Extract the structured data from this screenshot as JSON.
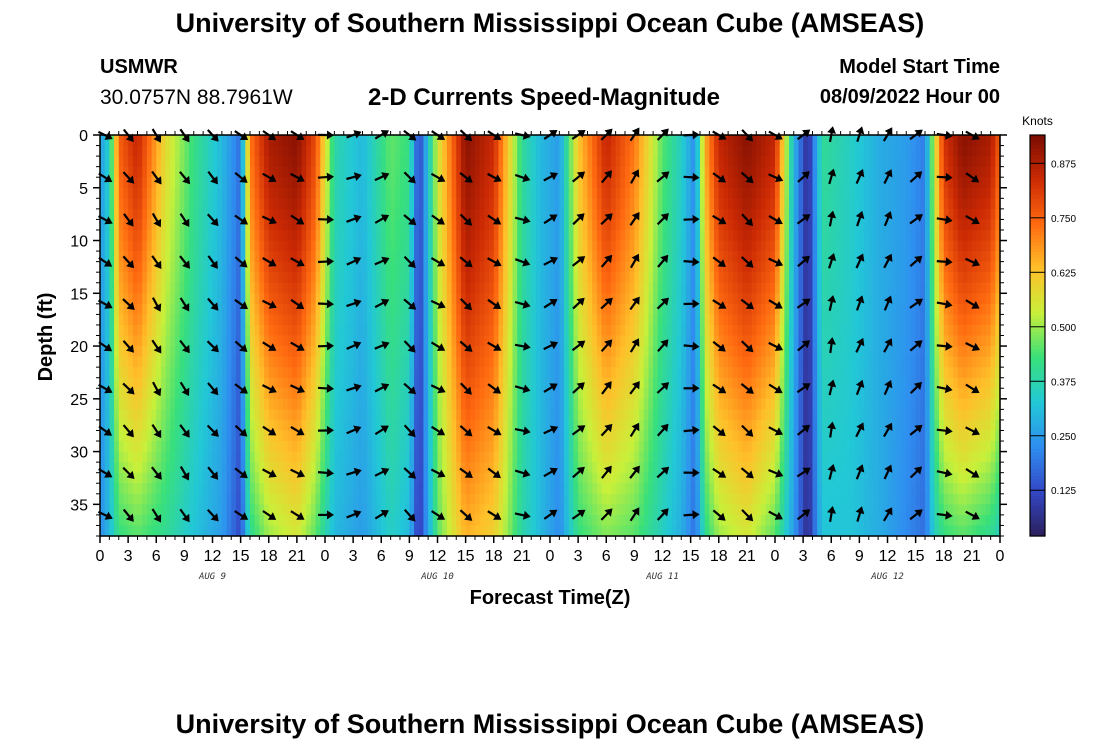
{
  "header": {
    "title": "University of Southern Mississippi Ocean Cube (AMSEAS)",
    "station": "USMWR",
    "coords": "30.0757N  88.7961W",
    "model_start_label": "Model Start Time",
    "model_start_value": "08/09/2022 Hour 00"
  },
  "footer": {
    "title": "University of Southern Mississippi Ocean Cube (AMSEAS)"
  },
  "colors": {
    "scale": [
      "#2c1f5c",
      "#3347c6",
      "#2f8ef0",
      "#22c8d6",
      "#39e07a",
      "#c8f03a",
      "#ffc02a",
      "#ff6a10",
      "#cc2a04",
      "#7a0c02"
    ],
    "arrow": "#000000"
  },
  "chart_data": {
    "type": "heatmap",
    "title": "2-D Currents Speed-Magnitude",
    "xlabel": "Forecast Time(Z)",
    "ylabel": "Depth (ft)",
    "x_tick_labels": [
      "0",
      "3",
      "6",
      "9",
      "12",
      "15",
      "18",
      "21",
      "0",
      "3",
      "6",
      "9",
      "12",
      "15",
      "18",
      "21",
      "0",
      "3",
      "6",
      "9",
      "12",
      "15",
      "18",
      "21",
      "0",
      "3",
      "6",
      "9",
      "12",
      "15",
      "18",
      "21",
      "0"
    ],
    "x_range_hours": [
      0,
      96
    ],
    "day_labels": [
      {
        "label": "AUG 9",
        "hour": 12
      },
      {
        "label": "AUG 10",
        "hour": 36
      },
      {
        "label": "AUG 11",
        "hour": 60
      },
      {
        "label": "AUG 12",
        "hour": 84
      }
    ],
    "y_ticks": [
      "0",
      "5",
      "10",
      "15",
      "20",
      "25",
      "30",
      "35"
    ],
    "y_tick_values": [
      0,
      5,
      10,
      15,
      20,
      25,
      30,
      35
    ],
    "ylim": [
      0,
      38
    ],
    "colorbar": {
      "label": "Knots",
      "ticks": [
        "0.125",
        "0.250",
        "0.375",
        "0.500",
        "0.625",
        "0.750",
        "0.875"
      ],
      "tick_values": [
        0.125,
        0.25,
        0.375,
        0.5,
        0.625,
        0.75,
        0.875
      ],
      "range": [
        0.02,
        0.94
      ]
    },
    "speed_profile": {
      "hours": [
        0,
        1,
        2,
        4,
        7,
        10,
        13,
        15,
        16,
        18,
        21,
        23,
        25,
        28,
        31,
        33,
        34,
        36,
        39,
        42,
        45,
        47,
        49,
        51,
        54,
        57,
        60,
        62,
        63.5,
        64.5,
        66,
        69,
        72,
        74,
        75.5,
        77,
        80,
        83,
        86,
        88,
        89,
        90,
        92,
        95,
        96
      ],
      "surface": [
        0.25,
        0.35,
        0.75,
        0.85,
        0.58,
        0.42,
        0.3,
        0.18,
        0.72,
        0.88,
        0.92,
        0.78,
        0.38,
        0.3,
        0.46,
        0.42,
        0.1,
        0.55,
        0.92,
        0.84,
        0.4,
        0.3,
        0.25,
        0.62,
        0.85,
        0.72,
        0.45,
        0.35,
        0.22,
        0.65,
        0.85,
        0.92,
        0.85,
        0.3,
        0.05,
        0.4,
        0.35,
        0.28,
        0.25,
        0.2,
        0.55,
        0.82,
        0.92,
        0.88,
        0.75
      ],
      "bottom": [
        0.22,
        0.3,
        0.42,
        0.45,
        0.4,
        0.32,
        0.25,
        0.12,
        0.4,
        0.5,
        0.55,
        0.45,
        0.3,
        0.25,
        0.35,
        0.3,
        0.08,
        0.45,
        0.65,
        0.6,
        0.38,
        0.3,
        0.22,
        0.42,
        0.48,
        0.45,
        0.35,
        0.28,
        0.18,
        0.4,
        0.5,
        0.55,
        0.45,
        0.25,
        0.05,
        0.32,
        0.32,
        0.28,
        0.22,
        0.18,
        0.35,
        0.42,
        0.45,
        0.4,
        0.35
      ]
    },
    "direction_profile": {
      "hours": [
        0,
        2,
        7,
        14,
        16,
        22,
        25,
        31,
        34,
        36,
        40,
        45,
        48,
        53,
        58,
        62,
        64,
        70,
        74,
        76,
        80,
        86,
        89,
        93,
        96
      ],
      "degrees": [
        115,
        135,
        150,
        135,
        120,
        120,
        75,
        60,
        170,
        120,
        135,
        105,
        60,
        45,
        30,
        60,
        120,
        135,
        100,
        5,
        20,
        30,
        90,
        120,
        120
      ]
    },
    "arrow_hours": [
      0.5,
      3,
      6,
      9,
      12,
      15,
      18,
      21,
      24,
      27,
      30,
      33,
      36,
      39,
      42,
      45,
      48,
      51,
      54,
      57,
      60,
      63,
      66,
      69,
      72,
      75,
      78,
      81,
      84,
      87,
      90,
      93
    ],
    "arrow_depths": [
      0,
      4,
      8,
      12,
      16,
      20,
      24,
      28,
      32,
      36
    ]
  }
}
